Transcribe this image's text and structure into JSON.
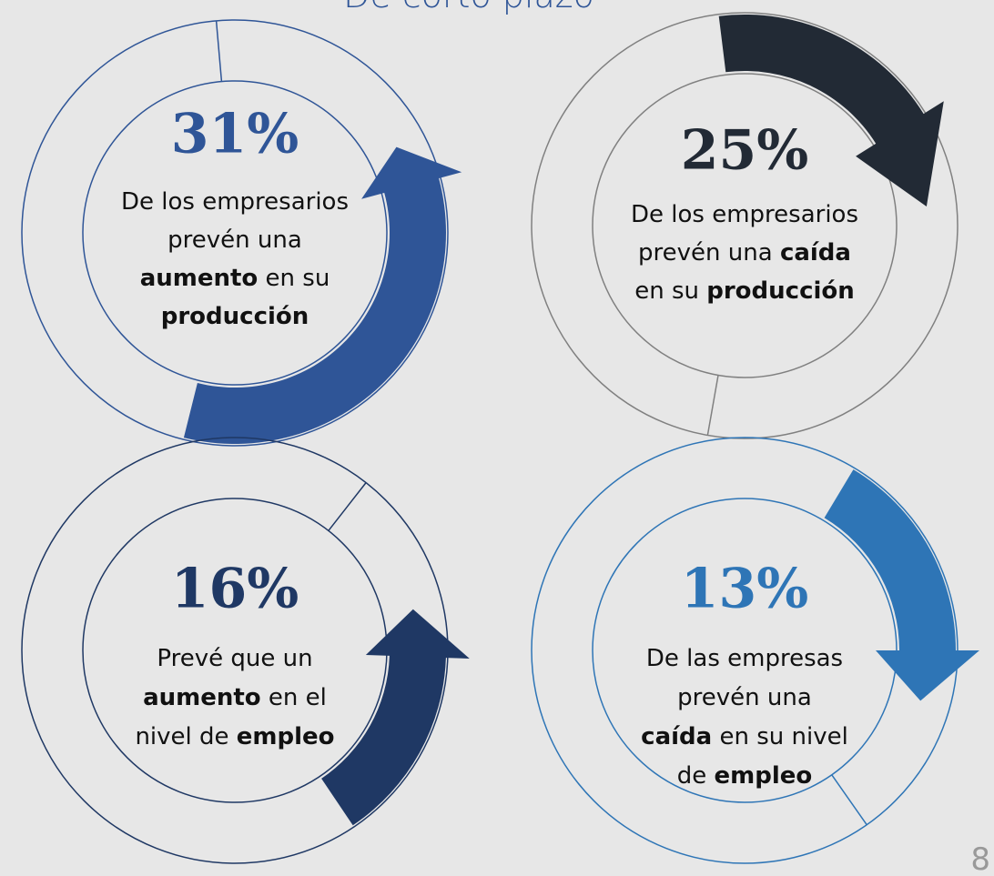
{
  "title": "De corto plazo",
  "page_number": "8",
  "items": [
    {
      "percent": "31%",
      "lines": [
        [
          {
            "text": "De los empresarios"
          }
        ],
        [
          {
            "text": "prevén una"
          }
        ],
        [
          {
            "text": "aumento",
            "bold": true
          },
          {
            "text": " en su"
          }
        ],
        [
          {
            "text": "producción",
            "bold": true
          }
        ]
      ]
    },
    {
      "percent": "25%",
      "lines": [
        [
          {
            "text": "De los empresarios"
          }
        ],
        [
          {
            "text": "prevén una "
          },
          {
            "text": "caída",
            "bold": true
          }
        ],
        [
          {
            "text": "en su "
          },
          {
            "text": "producción",
            "bold": true
          }
        ]
      ]
    },
    {
      "percent": "16%",
      "lines": [
        [
          {
            "text": "Prevé que un"
          }
        ],
        [
          {
            "text": "aumento",
            "bold": true
          },
          {
            "text": " en el"
          }
        ],
        [
          {
            "text": "nivel de "
          },
          {
            "text": "empleo",
            "bold": true
          }
        ]
      ]
    },
    {
      "percent": "13%",
      "lines": [
        [
          {
            "text": "De las empresas"
          }
        ],
        [
          {
            "text": "prevén una"
          }
        ],
        [
          {
            "text": "caída",
            "bold": true
          },
          {
            "text": " en su nivel"
          }
        ],
        [
          {
            "text": "de "
          },
          {
            "text": "empleo",
            "bold": true
          }
        ]
      ]
    }
  ]
}
